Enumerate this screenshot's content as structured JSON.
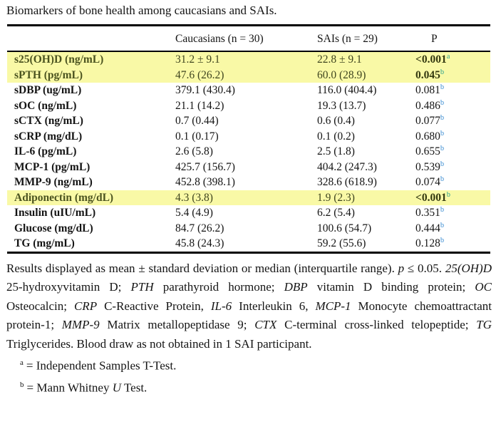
{
  "title": "Biomarkers of bone health among caucasians and SAIs.",
  "colors": {
    "text_color": "#141414",
    "row_highlight": "#f9f9a6",
    "hl_label": "#4c5420",
    "hl_value": "#3f451f",
    "hl_p": "#33380f",
    "sup_highlight": "#2fa38e",
    "sup_normal": "#3f8fd2"
  },
  "table": {
    "columns": [
      "",
      "Caucasians (n = 30)",
      "SAIs (n = 29)",
      "P"
    ],
    "rows": [
      {
        "label": "s25(OH)D (ng/mL)",
        "caucasians": "31.2 ± 9.1",
        "sais": "22.8 ± 9.1",
        "p": "<0.001",
        "sup": "a",
        "highlight": true
      },
      {
        "label": "sPTH (pg/mL)",
        "caucasians": "47.6 (26.2)",
        "sais": "60.0 (28.9)",
        "p": "0.045",
        "sup": "b",
        "highlight": true
      },
      {
        "label": "sDBP (ug/mL)",
        "caucasians": "379.1 (430.4)",
        "sais": "116.0 (404.4)",
        "p": "0.081",
        "sup": "b",
        "highlight": false
      },
      {
        "label": "sOC (ng/mL)",
        "caucasians": "21.1 (14.2)",
        "sais": "19.3 (13.7)",
        "p": "0.486",
        "sup": "b",
        "highlight": false
      },
      {
        "label": "sCTX (ng/mL)",
        "caucasians": "0.7 (0.44)",
        "sais": "0.6 (0.4)",
        "p": "0.077",
        "sup": "b",
        "highlight": false
      },
      {
        "label": "sCRP (mg/dL)",
        "caucasians": "0.1 (0.17)",
        "sais": "0.1 (0.2)",
        "p": "0.680",
        "sup": "b",
        "highlight": false
      },
      {
        "label": "IL-6 (pg/mL)",
        "caucasians": "2.6 (5.8)",
        "sais": "2.5 (1.8)",
        "p": "0.655",
        "sup": "b",
        "highlight": false
      },
      {
        "label": "MCP-1 (pg/mL)",
        "caucasians": "425.7 (156.7)",
        "sais": "404.2 (247.3)",
        "p": "0.539",
        "sup": "b",
        "highlight": false
      },
      {
        "label": "MMP-9 (ng/mL)",
        "caucasians": "452.8 (398.1)",
        "sais": "328.6 (618.9)",
        "p": "0.074",
        "sup": "b",
        "highlight": false
      },
      {
        "label": "Adiponectin (mg/dL)",
        "caucasians": "4.3 (3.8)",
        "sais": "1.9 (2.3)",
        "p": "<0.001",
        "sup": "b",
        "highlight": true
      },
      {
        "label": "Insulin (uIU/mL)",
        "caucasians": "5.4 (4.9)",
        "sais": "6.2 (5.4)",
        "p": "0.351",
        "sup": "b",
        "highlight": false
      },
      {
        "label": "Glucose (mg/dL)",
        "caucasians": "84.7 (26.2)",
        "sais": "100.6 (54.7)",
        "p": "0.444",
        "sup": "b",
        "highlight": false
      },
      {
        "label": "TG (mg/mL)",
        "caucasians": "45.8 (24.3)",
        "sais": "59.2 (55.6)",
        "p": "0.128",
        "sup": "b",
        "highlight": false
      }
    ]
  },
  "footnote": {
    "runs": [
      {
        "text": "Results displayed as mean ± standard deviation or median (interquartile range). "
      },
      {
        "text": "p",
        "italic": true
      },
      {
        "text": " ≤ 0.05. "
      },
      {
        "text": "25(OH)D",
        "italic": true
      },
      {
        "text": " 25-hydroxyvitamin D; "
      },
      {
        "text": "PTH",
        "italic": true
      },
      {
        "text": " parathyroid hormone; "
      },
      {
        "text": "DBP",
        "italic": true
      },
      {
        "text": " vitamin D binding protein; "
      },
      {
        "text": "OC",
        "italic": true
      },
      {
        "text": " Osteocalcin; "
      },
      {
        "text": "CRP",
        "italic": true
      },
      {
        "text": " C-Reactive Protein, "
      },
      {
        "text": "IL-6",
        "italic": true
      },
      {
        "text": " Interleukin 6, "
      },
      {
        "text": "MCP-1",
        "italic": true
      },
      {
        "text": " Monocyte chemoattractant protein-1; "
      },
      {
        "text": "MMP-9",
        "italic": true
      },
      {
        "text": " Matrix metallopeptidase 9; "
      },
      {
        "text": "CTX",
        "italic": true
      },
      {
        "text": " C-terminal cross-linked telopeptide; "
      },
      {
        "text": "TG",
        "italic": true
      },
      {
        "text": " Triglycerides. Blood draw as not obtained in 1 SAI participant."
      }
    ]
  },
  "footnote_defs": [
    {
      "marker": "a",
      "runs": [
        {
          "text": "= Independent Samples T-Test."
        }
      ]
    },
    {
      "marker": "b",
      "runs": [
        {
          "text": "= Mann Whitney "
        },
        {
          "text": "U",
          "italic": true
        },
        {
          "text": " Test."
        }
      ]
    }
  ]
}
